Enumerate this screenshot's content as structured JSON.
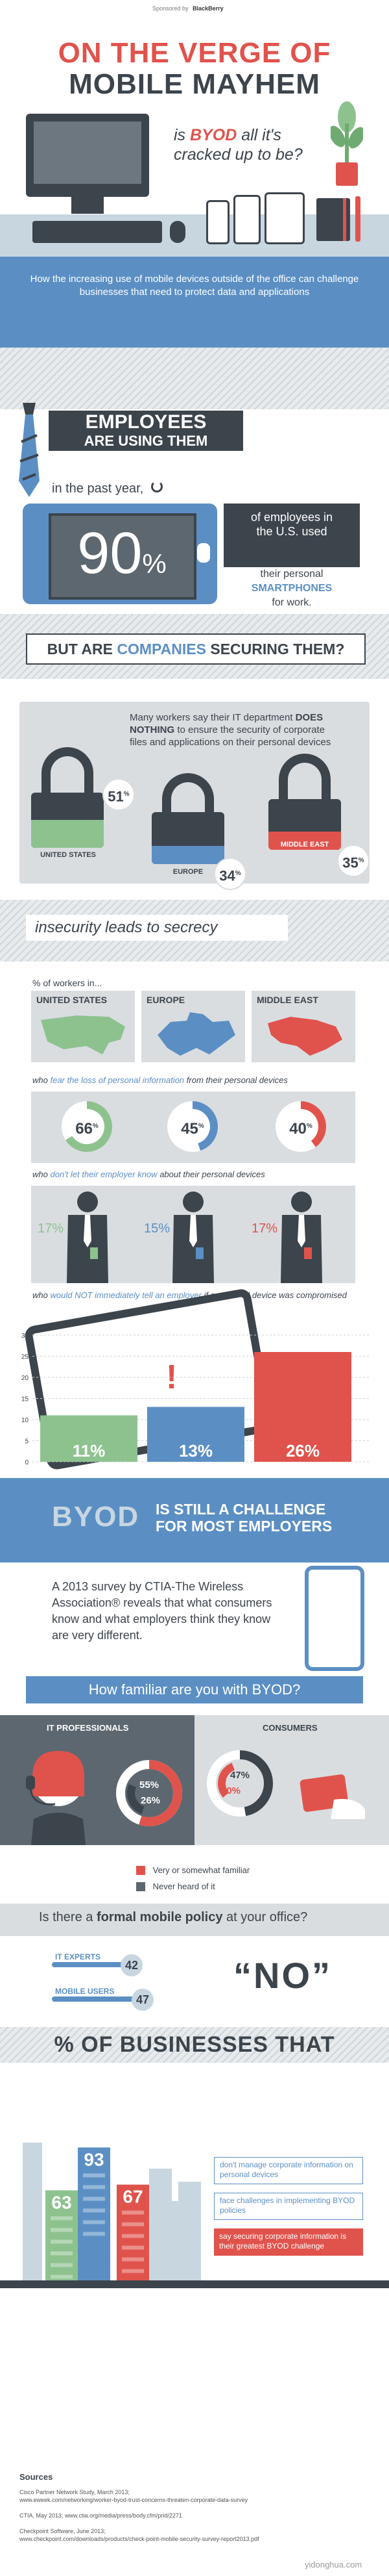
{
  "header": {
    "sponsor": "Sponsored by",
    "sponsor_brand": "BlackBerry",
    "title_line1": "ON THE VERGE OF",
    "title_line2": "MOBILE MAYHEM",
    "subtitle_pre": "is",
    "subtitle_byod": "BYOD",
    "subtitle_post": "all it's cracked up to be?",
    "intro": "How the increasing use of mobile devices outside of the office can challenge businesses that need to protect data and applications"
  },
  "employees": {
    "title_line1": "EMPLOYEES",
    "title_line2": "ARE USING THEM",
    "past_year": "in the past year,",
    "stat": "90",
    "stat_unit": "%",
    "desc_line1": "of employees in",
    "desc_line2": "the U.S. used",
    "desc_line3": "their personal",
    "desc_highlight": "SMARTPHONES",
    "desc_line4": "for work."
  },
  "securing": {
    "question_pre": "BUT ARE",
    "question_bold": "COMPANIES",
    "question_post": "SECURING THEM?",
    "text_pre": "Many workers say their IT department",
    "text_bold": "DOES NOTHING",
    "text_post": "to ensure the security of corporate files and applications on their personal devices",
    "locks": [
      {
        "region": "UNITED STATES",
        "value": "51",
        "unit": "%",
        "color": "#8dc28f"
      },
      {
        "region": "EUROPE",
        "value": "34",
        "unit": "%",
        "color": "#5b8fc4"
      },
      {
        "region": "MIDDLE EAST",
        "value": "35",
        "unit": "%",
        "color": "#e0534c"
      }
    ]
  },
  "secrecy": {
    "title": "insecurity leads to secrecy",
    "workers_in": "% of workers in...",
    "regions": [
      "UNITED STATES",
      "EUROPE",
      "MIDDLE EAST"
    ],
    "fear_pre": "who",
    "fear_highlight": "fear the loss of personal information",
    "fear_post": "from their personal devices",
    "fear_values": [
      {
        "value": "66",
        "unit": "%"
      },
      {
        "value": "45",
        "unit": "%"
      },
      {
        "value": "40",
        "unit": "%"
      }
    ],
    "know_pre": "who",
    "know_highlight": "don't let their employer know",
    "know_post": "about their personal devices",
    "know_values": [
      "17%",
      "15%",
      "17%"
    ],
    "tell_pre": "who",
    "tell_highlight": "would NOT immediately tell an employer",
    "tell_post": "if a personal device was compromised"
  },
  "chart_data": {
    "type": "bar",
    "categories": [
      "UNITED STATES",
      "EUROPE",
      "MIDDLE EAST"
    ],
    "values": [
      11,
      13,
      26
    ],
    "value_labels": [
      "11%",
      "13%",
      "26%"
    ],
    "ylim": [
      0,
      30
    ],
    "yticks": [
      "30",
      "25",
      "20",
      "15",
      "10",
      "5",
      "0"
    ],
    "grid": true,
    "colors": [
      "#8dc28f",
      "#5b8fc4",
      "#e0534c"
    ]
  },
  "challenge": {
    "byod": "BYOD",
    "title_line1": "IS STILL A CHALLENGE",
    "title_line2": "FOR MOST EMPLOYERS",
    "text": "A 2013 survey by CTIA-The Wireless Association® reveals that what consumers know and what employers think they know are very different.",
    "familiar_question": "How familiar are you with BYOD?",
    "it_label": "IT PROFESSIONALS",
    "consumer_label": "CONSUMERS",
    "it_familiar": "55%",
    "it_never": "26%",
    "consumer_familiar": "47%",
    "consumer_never": "30%",
    "legend_familiar": "Very or somewhat familiar",
    "legend_never": "Never heard of it",
    "color_familiar": "#e0534c",
    "color_never": "#5d6770"
  },
  "policy": {
    "question_pre": "Is there a",
    "question_bold": "formal mobile policy",
    "question_post": "at your office?",
    "it_label": "IT EXPERTS",
    "it_value": "42",
    "mobile_label": "MOBILE USERS",
    "mobile_value": "47",
    "answer": "“NO”"
  },
  "businesses": {
    "title": "% OF BUSINESSES THAT",
    "values": [
      {
        "value": "63",
        "text": "don't manage corporate information on personal devices",
        "color": "#8dc28f"
      },
      {
        "value": "93",
        "text": "face challenges in implementing BYOD policies",
        "color": "#5b8fc4"
      },
      {
        "value": "67",
        "text": "say securing corporate information is their greatest BYOD challenge",
        "color": "#e0534c"
      }
    ]
  },
  "sources": {
    "title": "Sources",
    "lines": [
      "Cisco Partner Network Study, March 2013;",
      "www.eweek.com/networking/worker-byod-trust-concerns-threaten-corporate-data-survey",
      "CTIA, May 2013; www.ctia.org/media/press/body.cfm/prid/2271",
      "Checkpoint Software, June 2013;",
      "www.checkpoint.com/downloads/products/check-point-mobile-security-survey-report2013.pdf"
    ],
    "watermark": "yidonghua.com"
  }
}
